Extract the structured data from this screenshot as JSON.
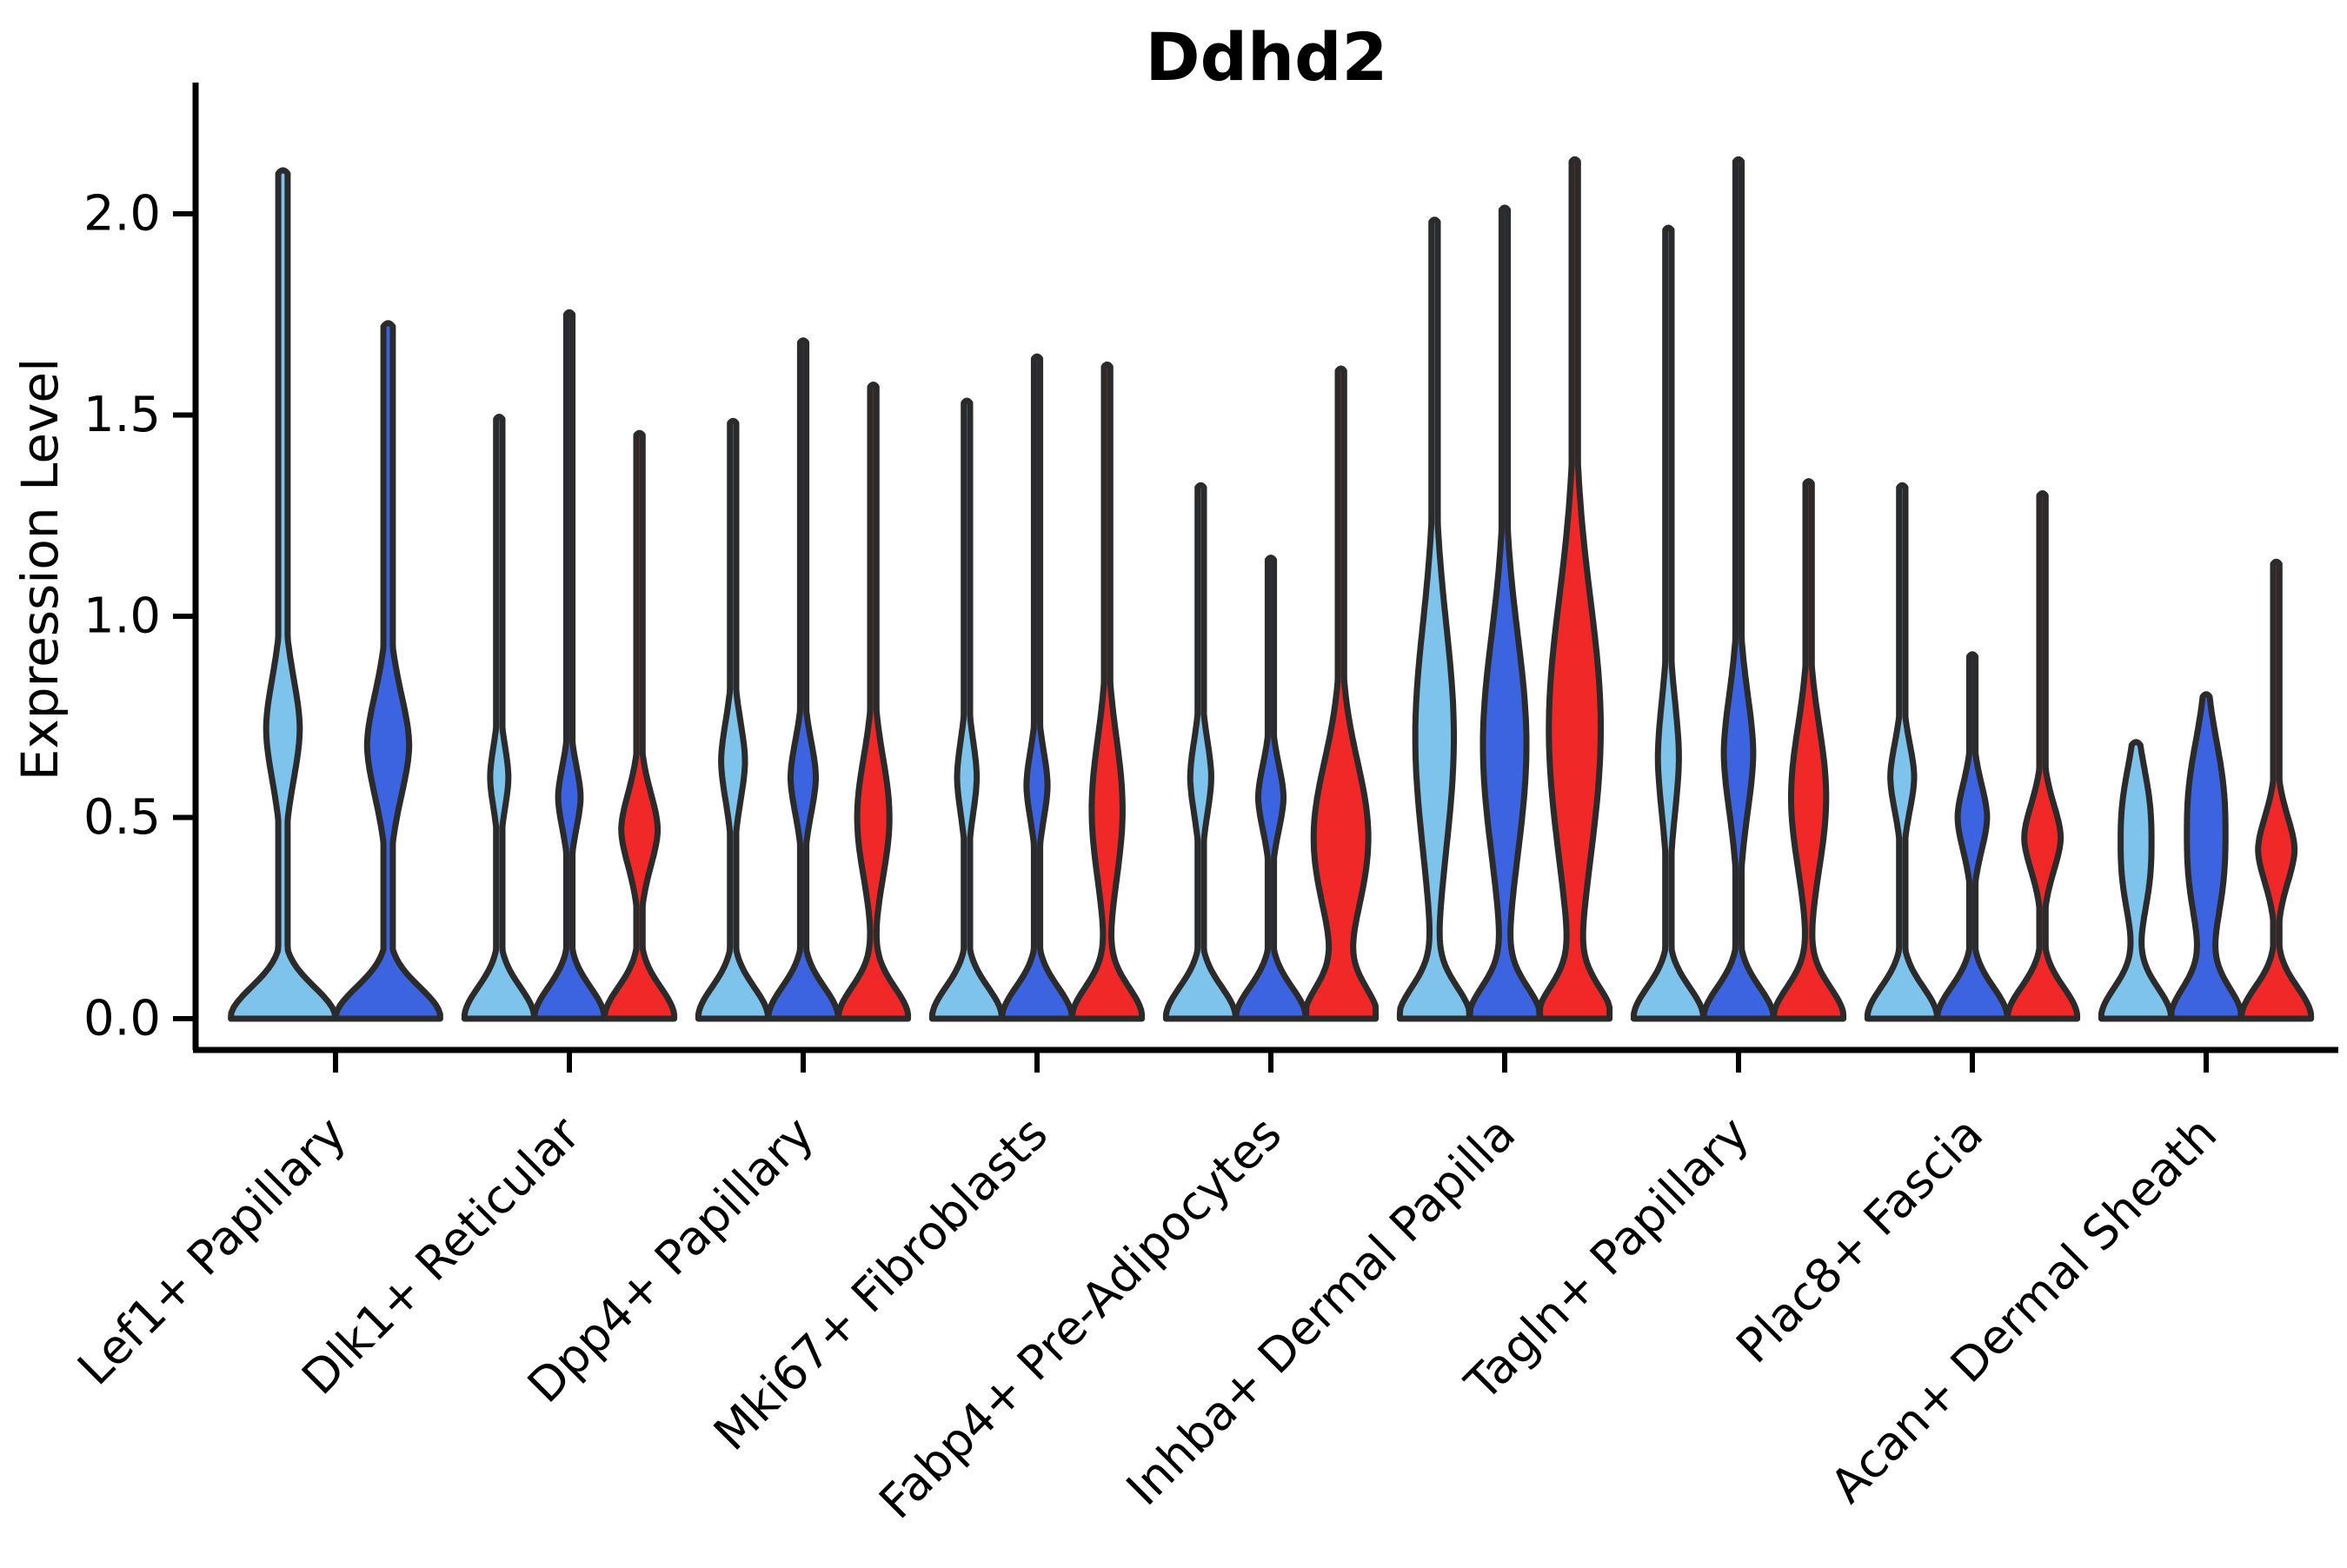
{
  "title": "Ddhd2",
  "axes": {
    "y_label": "Expression Level",
    "y_ticks": [
      {
        "value": 0.0,
        "label": "0.0"
      },
      {
        "value": 0.5,
        "label": "0.5"
      },
      {
        "value": 1.0,
        "label": "1.0"
      },
      {
        "value": 1.5,
        "label": "1.5"
      },
      {
        "value": 2.0,
        "label": "2.0"
      }
    ]
  },
  "chart_data": {
    "type": "violin",
    "title": "Ddhd2",
    "xlabel": "",
    "ylabel": "Expression Level",
    "ylim": [
      0,
      2.33
    ],
    "grid": false,
    "legend_position": "none",
    "palette": {
      "light-blue": "#7DC3EB",
      "royal-blue": "#3C64E1",
      "red": "#F02828"
    },
    "outline_color": "#2B2B2B",
    "categories": [
      "Lef1+ Papillary",
      "Dlk1+ Reticular",
      "Dpp4+ Papillary",
      "Mki67+ Fibroblasts",
      "Fabp4+ Pre-Adipocytes",
      "Inhba+ Dermal Papilla",
      "Tagln+ Papillary",
      "Plac8+ Fascia",
      "Acan+ Dermal Sheath"
    ],
    "groups": [
      {
        "category": "Lef1+ Papillary",
        "violins": [
          {
            "color": "light-blue",
            "max": 2.1,
            "bulge_lo": 0.42,
            "bulge_center": 0.72,
            "bulge_hi": 1.05,
            "bulge_width": 0.32,
            "shape": "narrow"
          },
          {
            "color": "royal-blue",
            "max": 1.72,
            "bulge_lo": 0.4,
            "bulge_center": 0.68,
            "bulge_hi": 1.02,
            "bulge_width": 0.4,
            "shape": "narrow"
          }
        ]
      },
      {
        "category": "Dlk1+ Reticular",
        "violins": [
          {
            "color": "light-blue",
            "max": 1.49,
            "bulge_lo": 0.42,
            "bulge_center": 0.6,
            "bulge_hi": 0.8,
            "bulge_width": 0.26,
            "shape": "narrow"
          },
          {
            "color": "royal-blue",
            "max": 1.75,
            "bulge_lo": 0.38,
            "bulge_center": 0.55,
            "bulge_hi": 0.76,
            "bulge_width": 0.32,
            "shape": "narrow"
          },
          {
            "color": "red",
            "max": 1.45,
            "bulge_lo": 0.26,
            "bulge_center": 0.47,
            "bulge_hi": 0.7,
            "bulge_width": 0.52,
            "shape": "narrow"
          }
        ]
      },
      {
        "category": "Dpp4+ Papillary",
        "violins": [
          {
            "color": "light-blue",
            "max": 1.48,
            "bulge_lo": 0.42,
            "bulge_center": 0.64,
            "bulge_hi": 0.9,
            "bulge_width": 0.34,
            "shape": "narrow"
          },
          {
            "color": "royal-blue",
            "max": 1.68,
            "bulge_lo": 0.4,
            "bulge_center": 0.6,
            "bulge_hi": 0.84,
            "bulge_width": 0.36,
            "shape": "narrow"
          },
          {
            "color": "red",
            "max": 1.57,
            "bulge_lo": 0.28,
            "bulge_center": 0.5,
            "bulge_hi": 0.78,
            "bulge_width": 0.46,
            "shape": "wide"
          }
        ]
      },
      {
        "category": "Mki67+ Fibroblasts",
        "violins": [
          {
            "color": "light-blue",
            "max": 1.53,
            "bulge_lo": 0.4,
            "bulge_center": 0.6,
            "bulge_hi": 0.85,
            "bulge_width": 0.28,
            "shape": "narrow"
          },
          {
            "color": "royal-blue",
            "max": 1.64,
            "bulge_lo": 0.4,
            "bulge_center": 0.58,
            "bulge_hi": 0.82,
            "bulge_width": 0.3,
            "shape": "narrow"
          },
          {
            "color": "red",
            "max": 1.62,
            "bulge_lo": 0.28,
            "bulge_center": 0.52,
            "bulge_hi": 0.88,
            "bulge_width": 0.44,
            "shape": "wide"
          }
        ]
      },
      {
        "category": "Fabp4+ Pre-Adipocytes",
        "violins": [
          {
            "color": "light-blue",
            "max": 1.32,
            "bulge_lo": 0.4,
            "bulge_center": 0.6,
            "bulge_hi": 0.85,
            "bulge_width": 0.3,
            "shape": "narrow"
          },
          {
            "color": "royal-blue",
            "max": 1.14,
            "bulge_lo": 0.36,
            "bulge_center": 0.55,
            "bulge_hi": 0.76,
            "bulge_width": 0.36,
            "shape": "narrow"
          },
          {
            "color": "red",
            "max": 1.61,
            "bulge_lo": 0.16,
            "bulge_center": 0.45,
            "bulge_hi": 0.8,
            "bulge_width": 0.78,
            "shape": "wide"
          }
        ]
      },
      {
        "category": "Inhba+ Dermal Papilla",
        "violins": [
          {
            "color": "light-blue",
            "max": 1.98,
            "bulge_lo": 0.3,
            "bulge_center": 0.7,
            "bulge_hi": 1.25,
            "bulge_width": 0.55,
            "shape": "wide"
          },
          {
            "color": "royal-blue",
            "max": 2.01,
            "bulge_lo": 0.3,
            "bulge_center": 0.68,
            "bulge_hi": 1.22,
            "bulge_width": 0.62,
            "shape": "wide"
          },
          {
            "color": "red",
            "max": 2.13,
            "bulge_lo": 0.24,
            "bulge_center": 0.72,
            "bulge_hi": 1.33,
            "bulge_width": 0.74,
            "shape": "wide"
          }
        ]
      },
      {
        "category": "Tagln+ Papillary",
        "violins": [
          {
            "color": "light-blue",
            "max": 1.96,
            "bulge_lo": 0.38,
            "bulge_center": 0.65,
            "bulge_hi": 1.06,
            "bulge_width": 0.3,
            "shape": "narrow"
          },
          {
            "color": "royal-blue",
            "max": 2.13,
            "bulge_lo": 0.35,
            "bulge_center": 0.66,
            "bulge_hi": 1.06,
            "bulge_width": 0.42,
            "shape": "narrow"
          },
          {
            "color": "red",
            "max": 1.33,
            "bulge_lo": 0.3,
            "bulge_center": 0.55,
            "bulge_hi": 0.9,
            "bulge_width": 0.5,
            "shape": "wide"
          }
        ]
      },
      {
        "category": "Plac8+ Fascia",
        "violins": [
          {
            "color": "light-blue",
            "max": 1.32,
            "bulge_lo": 0.42,
            "bulge_center": 0.6,
            "bulge_hi": 0.83,
            "bulge_width": 0.34,
            "shape": "narrow"
          },
          {
            "color": "royal-blue",
            "max": 0.9,
            "bulge_lo": 0.3,
            "bulge_center": 0.5,
            "bulge_hi": 0.7,
            "bulge_width": 0.42,
            "shape": "narrow"
          },
          {
            "color": "red",
            "max": 1.3,
            "bulge_lo": 0.26,
            "bulge_center": 0.45,
            "bulge_hi": 0.66,
            "bulge_width": 0.52,
            "shape": "narrow"
          }
        ]
      },
      {
        "category": "Acan+ Dermal Sheath",
        "violins": [
          {
            "color": "light-blue",
            "max": 0.68,
            "bulge_lo": 0.22,
            "bulge_center": 0.44,
            "bulge_hi": 0.68,
            "bulge_width": 0.44,
            "shape": "blunt"
          },
          {
            "color": "royal-blue",
            "max": 0.8,
            "bulge_lo": 0.2,
            "bulge_center": 0.46,
            "bulge_hi": 0.78,
            "bulge_width": 0.55,
            "shape": "blunt"
          },
          {
            "color": "red",
            "max": 1.13,
            "bulge_lo": 0.22,
            "bulge_center": 0.42,
            "bulge_hi": 0.62,
            "bulge_width": 0.52,
            "shape": "narrow"
          }
        ]
      }
    ]
  }
}
